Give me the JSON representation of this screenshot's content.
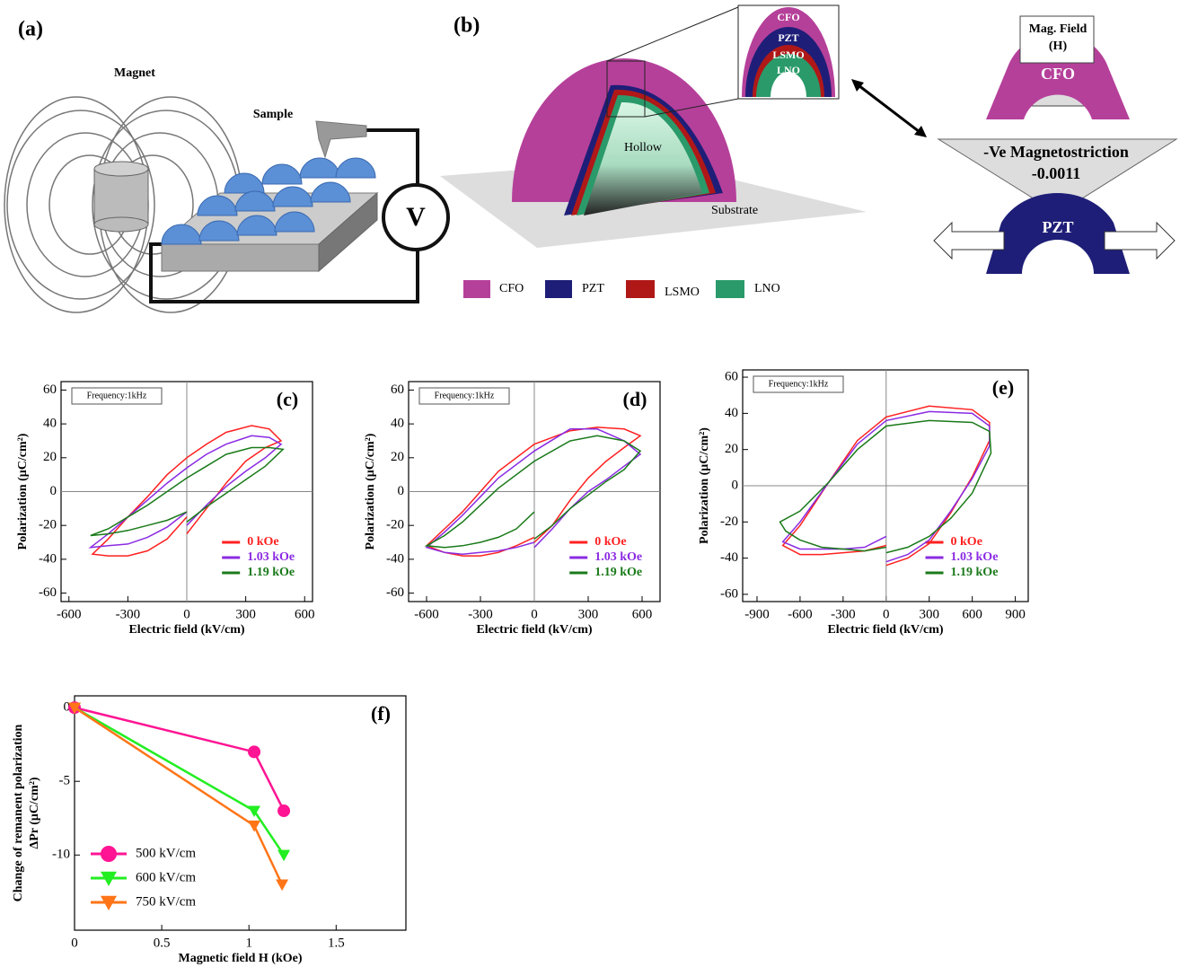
{
  "panel_a": {
    "label": "(a)",
    "magnet": "Magnet",
    "sample": "Sample",
    "voltmeter": "V"
  },
  "panel_b": {
    "label": "(b)",
    "hollow": "Hollow",
    "substrate": "Substrate",
    "inset_layers": [
      "CFO",
      "PZT",
      "LSMO",
      "LNO"
    ],
    "legend": [
      "CFO",
      "PZT",
      "LSMO",
      "LNO"
    ],
    "mag_field": [
      "Mag. Field",
      "(H)"
    ],
    "top_layer": "CFO",
    "magnetostriction": [
      "-Ve Magnetostriction",
      "-0.0011"
    ],
    "bottom_layer": "PZT"
  },
  "chart_data": [
    {
      "type": "line",
      "panel": "(c)",
      "annotation": "Frequency:1kHz",
      "xlabel": "Electric field (kV/cm)",
      "ylabel": "Polarization (μC/cm²)",
      "xlim": [
        -640,
        640
      ],
      "xticks": [
        -600,
        -300,
        0,
        300,
        600
      ],
      "ylim": [
        -65,
        65
      ],
      "yticks": [
        -60,
        -40,
        -20,
        0,
        20,
        40,
        60
      ],
      "zero_lines": true,
      "legend": "lower right",
      "series": [
        {
          "name": "0 kOe",
          "color": "#ff2020",
          "x": [
            0,
            100,
            200,
            300,
            400,
            480,
            420,
            330,
            200,
            100,
            0,
            -100,
            -200,
            -300,
            -400,
            -480,
            -400,
            -300,
            -200,
            -100,
            0
          ],
          "values": [
            -25,
            -10,
            5,
            18,
            26,
            30,
            37,
            39,
            35,
            28,
            20,
            10,
            -3,
            -15,
            -28,
            -37,
            -38,
            -38,
            -35,
            -28,
            -15
          ]
        },
        {
          "name": "1.03 kOe",
          "color": "#8a2be2",
          "x": [
            0,
            100,
            200,
            300,
            400,
            480,
            420,
            330,
            200,
            100,
            0,
            -100,
            -200,
            -300,
            -400,
            -490,
            -400,
            -300,
            -200,
            -100,
            0
          ],
          "values": [
            -20,
            -8,
            3,
            12,
            20,
            28,
            32,
            33,
            28,
            22,
            14,
            5,
            -5,
            -15,
            -25,
            -33,
            -32,
            -31,
            -27,
            -21,
            -12
          ]
        },
        {
          "name": "1.19 kOe",
          "color": "#1a7a1a",
          "x": [
            0,
            100,
            200,
            300,
            400,
            490,
            420,
            330,
            200,
            100,
            0,
            -100,
            -200,
            -300,
            -400,
            -490,
            -400,
            -300,
            -200,
            -100,
            0
          ],
          "values": [
            -18,
            -9,
            -1,
            7,
            15,
            25,
            26,
            26,
            22,
            15,
            8,
            0,
            -8,
            -15,
            -22,
            -26,
            -25,
            -23,
            -20,
            -17,
            -12
          ]
        }
      ]
    },
    {
      "type": "line",
      "panel": "(d)",
      "annotation": "Frequency:1kHz",
      "xlabel": "Electric field (kV/cm)",
      "ylabel": "Polarization (μC/cm²)",
      "xlim": [
        -700,
        700
      ],
      "xticks": [
        -600,
        -300,
        0,
        300,
        600
      ],
      "ylim": [
        -65,
        65
      ],
      "yticks": [
        -60,
        -40,
        -20,
        0,
        20,
        40,
        60
      ],
      "zero_lines": true,
      "legend": "lower right",
      "series": [
        {
          "name": "0 kOe",
          "color": "#ff2020",
          "x": [
            0,
            100,
            200,
            300,
            400,
            500,
            590,
            500,
            350,
            200,
            0,
            -200,
            -300,
            -400,
            -500,
            -600,
            -500,
            -400,
            -300,
            -200,
            -100,
            0
          ],
          "values": [
            -30,
            -20,
            -5,
            8,
            18,
            26,
            33,
            37,
            38,
            36,
            28,
            12,
            0,
            -12,
            -22,
            -32,
            -36,
            -38,
            -38,
            -36,
            -32,
            -27
          ]
        },
        {
          "name": "1.03 kOe",
          "color": "#8a2be2",
          "x": [
            0,
            100,
            200,
            300,
            400,
            500,
            590,
            500,
            350,
            200,
            0,
            -200,
            -300,
            -400,
            -500,
            -600,
            -500,
            -400,
            -300,
            -200,
            -100,
            0
          ],
          "values": [
            -33,
            -22,
            -10,
            0,
            7,
            15,
            22,
            30,
            37,
            37,
            24,
            8,
            -3,
            -14,
            -24,
            -33,
            -36,
            -37,
            -36,
            -35,
            -33,
            -30
          ]
        },
        {
          "name": "1.19 kOe",
          "color": "#1a7a1a",
          "x": [
            0,
            100,
            200,
            300,
            400,
            500,
            590,
            500,
            350,
            200,
            0,
            -200,
            -300,
            -400,
            -500,
            -600,
            -500,
            -400,
            -300,
            -200,
            -100,
            0
          ],
          "values": [
            -28,
            -20,
            -10,
            -2,
            6,
            13,
            24,
            30,
            33,
            30,
            18,
            2,
            -8,
            -18,
            -26,
            -32,
            -33,
            -32,
            -30,
            -27,
            -22,
            -12
          ]
        }
      ]
    },
    {
      "type": "line",
      "panel": "(e)",
      "annotation": "Frequency:1kHz",
      "xlabel": "Electric field (kV/cm)",
      "ylabel": "Polarization (μC/cm²)",
      "xlim": [
        -1000,
        990
      ],
      "xticks": [
        -900,
        -600,
        -300,
        0,
        300,
        600,
        900
      ],
      "ylim": [
        -64,
        64
      ],
      "yticks": [
        -60,
        -40,
        -20,
        0,
        20,
        40,
        60
      ],
      "zero_lines": true,
      "legend": "lower right",
      "series": [
        {
          "name": "0 kOe",
          "color": "#ff2020",
          "x": [
            0,
            150,
            300,
            450,
            600,
            720,
            720,
            600,
            300,
            0,
            -200,
            -400,
            -600,
            -720,
            -600,
            -450,
            -300,
            -150,
            0
          ],
          "values": [
            -44,
            -40,
            -32,
            -15,
            5,
            25,
            35,
            42,
            44,
            38,
            25,
            2,
            -22,
            -33,
            -38,
            -38,
            -37,
            -36,
            -33
          ]
        },
        {
          "name": "1.03 kOe",
          "color": "#8a2be2",
          "x": [
            0,
            150,
            300,
            450,
            600,
            720,
            720,
            600,
            300,
            0,
            -200,
            -400,
            -600,
            -720,
            -600,
            -450,
            -300,
            -150,
            0
          ],
          "values": [
            -42,
            -38,
            -30,
            -14,
            4,
            22,
            33,
            40,
            41,
            36,
            23,
            2,
            -20,
            -31,
            -35,
            -35,
            -35,
            -34,
            -28
          ]
        },
        {
          "name": "1.19 kOe",
          "color": "#1a7a1a",
          "x": [
            0,
            150,
            300,
            450,
            600,
            730,
            720,
            600,
            300,
            0,
            -200,
            -400,
            -600,
            -740,
            -700,
            -600,
            -450,
            -300,
            -150,
            0
          ],
          "values": [
            -37,
            -34,
            -28,
            -18,
            -4,
            18,
            30,
            35,
            36,
            33,
            20,
            2,
            -14,
            -20,
            -25,
            -30,
            -34,
            -35,
            -36,
            -34
          ]
        }
      ]
    },
    {
      "type": "line",
      "panel": "(f)",
      "xlabel": "Magnetic field H (kOe)",
      "ylabel": [
        "Change of remanent polarization",
        "ΔPr (μC/cm²)"
      ],
      "xlim": [
        0,
        1.9
      ],
      "xticks": [
        0,
        0.5,
        1,
        1.5
      ],
      "ylim": [
        -15.1,
        0.8
      ],
      "yticks": [
        -10,
        -5,
        0
      ],
      "zero_lines": false,
      "legend": "lower left",
      "markers": true,
      "series": [
        {
          "name": "500 kV/cm",
          "color": "#ff1493",
          "marker": "circle",
          "x": [
            0,
            1.03,
            1.2
          ],
          "values": [
            0,
            -3,
            -7
          ]
        },
        {
          "name": "600 kV/cm",
          "color": "#22ee22",
          "marker": "triangle-down",
          "x": [
            0,
            1.03,
            1.2
          ],
          "values": [
            0,
            -7,
            -10
          ]
        },
        {
          "name": "750 kV/cm",
          "color": "#ff7518",
          "marker": "triangle-down",
          "x": [
            0,
            1.03,
            1.19
          ],
          "values": [
            0,
            -8,
            -12
          ]
        }
      ]
    }
  ]
}
